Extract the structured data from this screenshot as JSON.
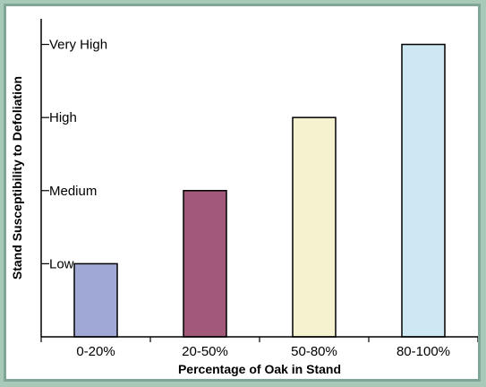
{
  "chart_data": {
    "type": "bar",
    "title": "",
    "xlabel": "Percentage of Oak in Stand",
    "ylabel": "Stand Susceptibility to Defoliation",
    "categories": [
      "0-20%",
      "20-50%",
      "50-80%",
      "80-100%"
    ],
    "values": [
      1,
      2,
      3,
      4
    ],
    "y_tick_labels": [
      "Low",
      "Medium",
      "High",
      "Very High"
    ],
    "y_tick_values": [
      1,
      2,
      3,
      4
    ],
    "ylim": [
      0,
      4.35
    ],
    "grid": false,
    "legend": "none",
    "colors": [
      "#a0a8d6",
      "#a25878",
      "#f5f2cf",
      "#cde8f2"
    ]
  }
}
